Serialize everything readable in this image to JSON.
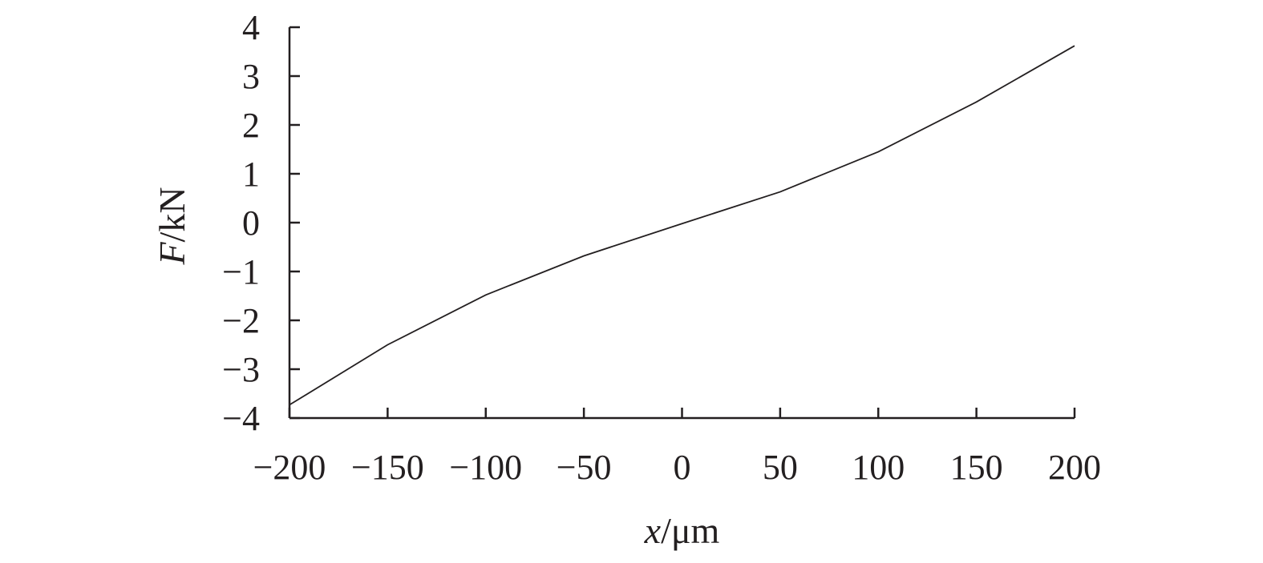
{
  "chart_data": {
    "type": "line",
    "x": [
      -200,
      -150,
      -100,
      -50,
      0,
      50,
      100,
      150,
      200
    ],
    "series": [
      {
        "values": [
          -3.73,
          -2.5,
          -1.48,
          -0.68,
          -0.02,
          0.63,
          1.45,
          2.47,
          3.62
        ]
      }
    ],
    "xlim": [
      -200,
      200
    ],
    "ylim": [
      -4,
      4
    ],
    "xticks": [
      -200,
      -150,
      -100,
      -50,
      0,
      50,
      100,
      150,
      200
    ],
    "yticks": [
      -4,
      -3,
      -2,
      -1,
      0,
      1,
      2,
      3,
      4
    ],
    "xtick_labels": [
      "−200",
      "−150",
      "−100",
      "−50",
      "0",
      "50",
      "100",
      "150",
      "200"
    ],
    "ytick_labels": [
      "−4",
      "−3",
      "−2",
      "−1",
      "0",
      "1",
      "2",
      "3",
      "4"
    ],
    "xlabel": {
      "var": "x",
      "unit": "/μm"
    },
    "ylabel": {
      "var": "F",
      "unit": "/kN"
    },
    "grid": false,
    "line_color": "#231f20"
  }
}
